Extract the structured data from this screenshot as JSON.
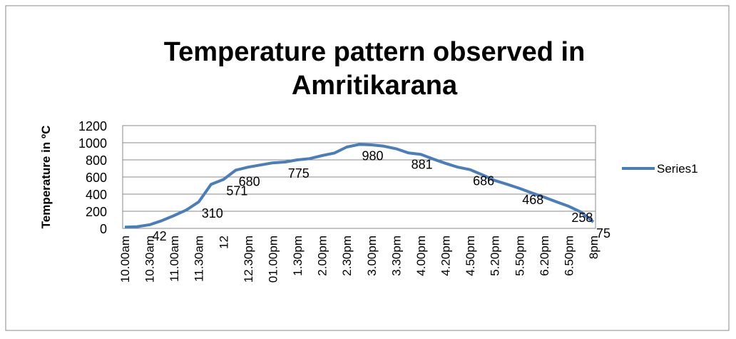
{
  "chart_data": {
    "type": "line",
    "title": [
      "Temperature pattern observed in",
      "Amritikarana"
    ],
    "y_label": "Temperature in ºC",
    "categories": [
      "10.00am",
      null,
      "10.30am",
      null,
      "11.00am",
      null,
      "11.30am",
      null,
      "12",
      null,
      "12.30pm",
      null,
      "01.00pm",
      null,
      "1.30pm",
      null,
      "2.00pm",
      null,
      "2.30pm",
      null,
      "3.00pm",
      null,
      "3.30pm",
      null,
      "4.00pm",
      null,
      "4.20pm",
      null,
      "4.50pm",
      null,
      "5.20pm",
      null,
      "5.50pm",
      null,
      "6.20pm",
      null,
      "6.50pm",
      null,
      "8pm"
    ],
    "series": [
      {
        "name": "Series1",
        "color": "#4a7ebb",
        "values": [
          15,
          20,
          42,
          90,
          150,
          215,
          310,
          515,
          571,
          680,
          715,
          740,
          765,
          775,
          800,
          815,
          850,
          880,
          950,
          980,
          975,
          960,
          930,
          881,
          865,
          810,
          760,
          715,
          686,
          625,
          560,
          515,
          468,
          415,
          365,
          310,
          258,
          190,
          75
        ],
        "labeled": [
          2,
          6,
          8,
          9,
          13,
          19,
          23,
          28,
          32,
          36,
          38
        ]
      }
    ],
    "ylim": [
      0,
      1200
    ],
    "yticks": [
      0,
      200,
      400,
      600,
      800,
      1000,
      1200
    ],
    "grid": true,
    "legend": "right"
  }
}
